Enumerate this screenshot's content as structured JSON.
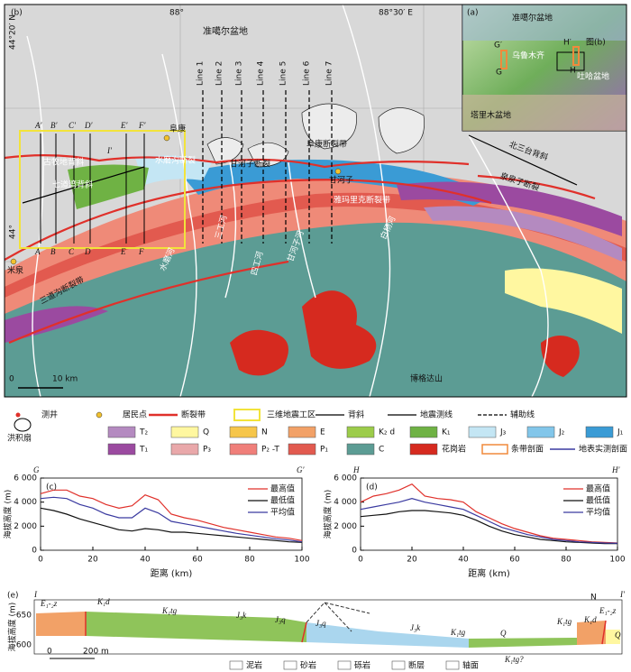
{
  "map": {
    "panel": "(b)",
    "coords": [
      "88°",
      "88°30′ E",
      "44°20′ N",
      "44°"
    ],
    "places": [
      "准噶尔盆地",
      "阜康",
      "甘河子",
      "米泉",
      "博格达山"
    ],
    "faults": [
      "阜康断裂带",
      "甘河子断裂",
      "水磨沟断裂",
      "雅玛里克断裂带",
      "三道沟断裂带",
      "泉泉子断裂"
    ],
    "anticlines": [
      "古牧地背斜",
      "七道湾背斜",
      "北三台背斜"
    ],
    "rivers": [
      "水磨河",
      "三工河",
      "四工河",
      "甘河子河",
      "白杨河"
    ],
    "lines": [
      "Line 1",
      "Line 2",
      "Line 3",
      "Line 4",
      "Line 5",
      "Line 6",
      "Line 7"
    ],
    "profiles": [
      "A′",
      "B′",
      "C′",
      "D′",
      "E′",
      "F′",
      "I′",
      "A",
      "B",
      "C",
      "D",
      "E",
      "F"
    ],
    "scale": [
      "0",
      "10 km"
    ]
  },
  "inset": {
    "panel": "(a)",
    "labels": [
      "准噶尔盆地",
      "乌鲁木齐",
      "吐哈盆地",
      "塔里木盆地",
      "G′",
      "G",
      "H′",
      "H",
      "图(b)"
    ]
  },
  "legend": [
    {
      "label": "测井",
      "color": "#e0302a"
    },
    {
      "label": "居民点",
      "color": "#f2c12e"
    },
    {
      "label": "断裂带",
      "color": "#e0302a"
    },
    {
      "label": "三维地震工区",
      "color": "#f2e33b"
    },
    {
      "label": "背斜",
      "color": "#000000"
    },
    {
      "label": "地震测线",
      "color": "#000000"
    },
    {
      "label": "辅助线",
      "color": "#000000"
    },
    {
      "label": "洪积扇",
      "color": "#ffffff"
    },
    {
      "label": "T₂",
      "color": "#b48ac0"
    },
    {
      "label": "Q",
      "color": "#fff7a0"
    },
    {
      "label": "N",
      "color": "#f6c64a"
    },
    {
      "label": "E",
      "color": "#f2a167"
    },
    {
      "label": "K₂ d",
      "color": "#9ccc4a"
    },
    {
      "label": "K₁",
      "color": "#6fb244"
    },
    {
      "label": "J₃",
      "color": "#c4e6f4"
    },
    {
      "label": "J₂",
      "color": "#82c6ea"
    },
    {
      "label": "J₁",
      "color": "#3a9bd5"
    },
    {
      "label": "T₁",
      "color": "#9b4aa0"
    },
    {
      "label": "P₃",
      "color": "#e9a8aa"
    },
    {
      "label": "P₂ -T",
      "color": "#f07f7a"
    },
    {
      "label": "P₁",
      "color": "#e25a4f"
    },
    {
      "label": "C",
      "color": "#5c9c94"
    },
    {
      "label": "花岗岩",
      "color": "#d62a1f"
    },
    {
      "label": "条带剖面",
      "color": "#f08a3c"
    },
    {
      "label": "地表实测剖面",
      "color": "#3a3aa0"
    }
  ],
  "chart_data": [
    {
      "type": "line",
      "panel": "(c)",
      "start": "G",
      "end": "G′",
      "xlabel": "距离 (km)",
      "ylabel": "海拔高度 (m)",
      "x": [
        0,
        5,
        10,
        15,
        20,
        25,
        30,
        35,
        40,
        45,
        50,
        55,
        60,
        65,
        70,
        75,
        80,
        85,
        90,
        95,
        100
      ],
      "xlim": [
        0,
        100
      ],
      "xticks": [
        0,
        20,
        40,
        60,
        80,
        100
      ],
      "ylim": [
        0,
        6000
      ],
      "yticks": [
        0,
        {
          "value": 2000,
          "label": "2 000"
        },
        {
          "value": 4000,
          "label": "4 000"
        },
        {
          "value": 6000,
          "label": "6 000"
        }
      ],
      "series": [
        {
          "name": "最高值",
          "color": "#e0302a",
          "values": [
            4700,
            5000,
            5000,
            4500,
            4300,
            3800,
            3500,
            3700,
            4600,
            4200,
            3000,
            2700,
            2500,
            2200,
            1900,
            1700,
            1500,
            1300,
            1100,
            1000,
            800
          ]
        },
        {
          "name": "最低值",
          "color": "#111111",
          "values": [
            3500,
            3300,
            3000,
            2600,
            2300,
            2000,
            1700,
            1600,
            1800,
            1700,
            1500,
            1500,
            1400,
            1300,
            1200,
            1100,
            1000,
            900,
            800,
            700,
            650
          ]
        },
        {
          "name": "平均值",
          "color": "#3a3aa0",
          "values": [
            4300,
            4400,
            4300,
            3800,
            3500,
            3000,
            2700,
            2700,
            3500,
            3100,
            2400,
            2200,
            2000,
            1800,
            1600,
            1400,
            1250,
            1100,
            950,
            850,
            700
          ]
        }
      ]
    },
    {
      "type": "line",
      "panel": "(d)",
      "start": "H",
      "end": "H′",
      "xlabel": "距离 (km)",
      "ylabel": "海拔高度 (m)",
      "x": [
        0,
        5,
        10,
        15,
        20,
        25,
        30,
        35,
        40,
        45,
        50,
        55,
        60,
        65,
        70,
        75,
        80,
        85,
        90,
        95,
        100
      ],
      "xlim": [
        0,
        100
      ],
      "xticks": [
        0,
        20,
        40,
        60,
        80,
        100
      ],
      "ylim": [
        0,
        6000
      ],
      "yticks": [
        0,
        {
          "value": 2000,
          "label": "2 000"
        },
        {
          "value": 4000,
          "label": "4 000"
        },
        {
          "value": 6000,
          "label": "6 000"
        }
      ],
      "series": [
        {
          "name": "最高值",
          "color": "#e0302a",
          "values": [
            4000,
            4500,
            4700,
            5000,
            5500,
            4500,
            4300,
            4200,
            4000,
            3200,
            2700,
            2200,
            1800,
            1500,
            1200,
            1000,
            900,
            800,
            700,
            650,
            600
          ]
        },
        {
          "name": "最低值",
          "color": "#111111",
          "values": [
            2800,
            2900,
            3000,
            3200,
            3300,
            3300,
            3200,
            3100,
            2900,
            2500,
            2000,
            1600,
            1300,
            1100,
            900,
            800,
            700,
            650,
            600,
            550,
            550
          ]
        },
        {
          "name": "平均值",
          "color": "#3a3aa0",
          "values": [
            3400,
            3600,
            3800,
            4000,
            4300,
            4000,
            3800,
            3600,
            3400,
            2900,
            2400,
            1900,
            1600,
            1300,
            1100,
            900,
            800,
            700,
            650,
            600,
            580
          ]
        }
      ]
    }
  ],
  "section": {
    "panel": "(e)",
    "start": "I",
    "end": "I′",
    "ylabel": "海拔高度 (m)",
    "yticks": [
      "650",
      "600"
    ],
    "north": "N",
    "units": [
      "E₁-₂z",
      "K₁d",
      "K₁tg",
      "J₃k",
      "J₃q",
      "J₃q",
      "J₃k",
      "K₁tg",
      "Q",
      "K₁tg",
      "K₁d",
      "E₁-₂z",
      "Q",
      "K₁tg?"
    ],
    "scale": [
      "0",
      "200 m"
    ],
    "legend": [
      "泥岩",
      "砂岩",
      "砾岩",
      "断层",
      "轴面"
    ]
  }
}
